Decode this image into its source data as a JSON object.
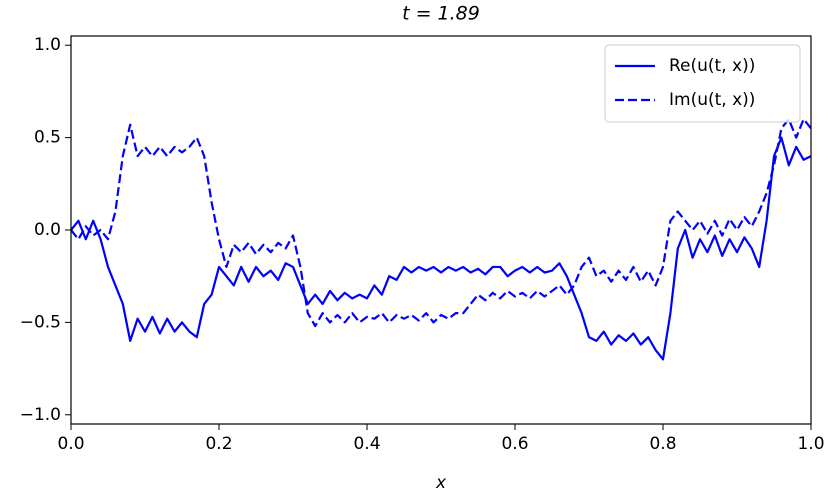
{
  "chart_data": {
    "type": "line",
    "title": "t = 1.89",
    "xlabel": "x",
    "x": [
      0.0,
      0.01,
      0.02,
      0.03,
      0.04,
      0.05,
      0.06,
      0.07,
      0.08,
      0.09,
      0.1,
      0.11,
      0.12,
      0.13,
      0.14,
      0.15,
      0.16,
      0.17,
      0.18,
      0.19,
      0.2,
      0.21,
      0.22,
      0.23,
      0.24,
      0.25,
      0.26,
      0.27,
      0.28,
      0.29,
      0.3,
      0.31,
      0.32,
      0.33,
      0.34,
      0.35,
      0.36,
      0.37,
      0.38,
      0.39,
      0.4,
      0.41,
      0.42,
      0.43,
      0.44,
      0.45,
      0.46,
      0.47,
      0.48,
      0.49,
      0.5,
      0.51,
      0.52,
      0.53,
      0.54,
      0.55,
      0.56,
      0.57,
      0.58,
      0.59,
      0.6,
      0.61,
      0.62,
      0.63,
      0.64,
      0.65,
      0.66,
      0.67,
      0.68,
      0.69,
      0.7,
      0.71,
      0.72,
      0.73,
      0.74,
      0.75,
      0.76,
      0.77,
      0.78,
      0.79,
      0.8,
      0.81,
      0.82,
      0.83,
      0.84,
      0.85,
      0.86,
      0.87,
      0.88,
      0.89,
      0.9,
      0.91,
      0.92,
      0.93,
      0.94,
      0.95,
      0.96,
      0.97,
      0.98,
      0.99,
      1.0
    ],
    "series": [
      {
        "name": "Re(u(t, x))",
        "color": "#0000ff",
        "linestyle": "solid",
        "values": [
          0.0,
          0.05,
          -0.05,
          0.05,
          -0.05,
          -0.2,
          -0.3,
          -0.4,
          -0.6,
          -0.48,
          -0.55,
          -0.47,
          -0.56,
          -0.48,
          -0.55,
          -0.5,
          -0.55,
          -0.58,
          -0.4,
          -0.35,
          -0.2,
          -0.25,
          -0.3,
          -0.2,
          -0.28,
          -0.2,
          -0.25,
          -0.22,
          -0.27,
          -0.18,
          -0.2,
          -0.3,
          -0.4,
          -0.35,
          -0.4,
          -0.33,
          -0.38,
          -0.34,
          -0.37,
          -0.35,
          -0.37,
          -0.3,
          -0.35,
          -0.25,
          -0.27,
          -0.2,
          -0.23,
          -0.2,
          -0.22,
          -0.2,
          -0.23,
          -0.2,
          -0.22,
          -0.2,
          -0.23,
          -0.21,
          -0.24,
          -0.2,
          -0.2,
          -0.25,
          -0.22,
          -0.2,
          -0.23,
          -0.2,
          -0.23,
          -0.22,
          -0.18,
          -0.25,
          -0.35,
          -0.45,
          -0.58,
          -0.6,
          -0.55,
          -0.62,
          -0.57,
          -0.6,
          -0.56,
          -0.62,
          -0.58,
          -0.65,
          -0.7,
          -0.45,
          -0.1,
          0.0,
          -0.15,
          -0.05,
          -0.12,
          -0.03,
          -0.14,
          -0.05,
          -0.12,
          -0.04,
          -0.1,
          -0.2,
          0.05,
          0.4,
          0.5,
          0.35,
          0.45,
          0.38,
          0.4
        ]
      },
      {
        "name": "Im(u(t, x))",
        "color": "#0000ff",
        "linestyle": "dashed",
        "values": [
          0.0,
          -0.05,
          0.02,
          -0.03,
          0.0,
          -0.05,
          0.1,
          0.4,
          0.57,
          0.4,
          0.45,
          0.4,
          0.45,
          0.4,
          0.45,
          0.42,
          0.45,
          0.5,
          0.4,
          0.15,
          -0.05,
          -0.2,
          -0.08,
          -0.12,
          -0.07,
          -0.13,
          -0.08,
          -0.12,
          -0.07,
          -0.1,
          -0.03,
          -0.2,
          -0.45,
          -0.52,
          -0.45,
          -0.5,
          -0.46,
          -0.5,
          -0.45,
          -0.5,
          -0.47,
          -0.48,
          -0.45,
          -0.5,
          -0.46,
          -0.48,
          -0.46,
          -0.49,
          -0.45,
          -0.5,
          -0.46,
          -0.48,
          -0.45,
          -0.45,
          -0.4,
          -0.35,
          -0.38,
          -0.34,
          -0.37,
          -0.33,
          -0.36,
          -0.34,
          -0.37,
          -0.33,
          -0.36,
          -0.33,
          -0.3,
          -0.35,
          -0.3,
          -0.2,
          -0.15,
          -0.25,
          -0.22,
          -0.28,
          -0.22,
          -0.27,
          -0.2,
          -0.28,
          -0.22,
          -0.3,
          -0.2,
          0.05,
          0.1,
          0.05,
          0.0,
          0.05,
          -0.02,
          0.05,
          -0.03,
          0.06,
          0.0,
          0.07,
          0.02,
          0.1,
          0.2,
          0.35,
          0.55,
          0.6,
          0.5,
          0.6,
          0.55
        ]
      }
    ],
    "xlim": [
      0,
      1
    ],
    "ylim": [
      -1.05,
      1.05
    ],
    "xticks": [
      {
        "value": 0,
        "label": "0.0"
      },
      {
        "value": 0.2,
        "label": "0.2"
      },
      {
        "value": 0.4,
        "label": "0.4"
      },
      {
        "value": 0.6,
        "label": "0.6"
      },
      {
        "value": 0.8,
        "label": "0.8"
      },
      {
        "value": 1,
        "label": "1.0"
      }
    ],
    "yticks": [
      {
        "value": -1,
        "label": "−1.0"
      },
      {
        "value": -0.5,
        "label": "−0.5"
      },
      {
        "value": 0,
        "label": "0.0"
      },
      {
        "value": 0.5,
        "label": "0.5"
      },
      {
        "value": 1,
        "label": "1.0"
      }
    ],
    "grid": false,
    "legend": "upper right"
  }
}
